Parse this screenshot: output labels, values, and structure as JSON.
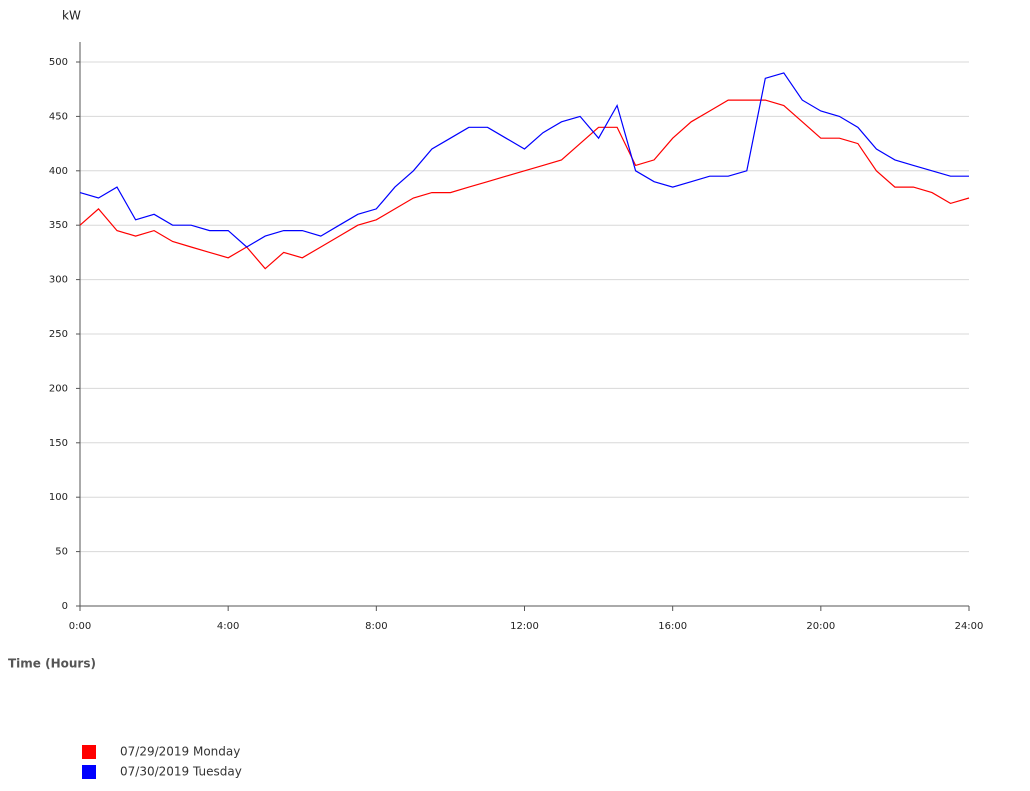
{
  "chart_data": {
    "type": "line",
    "y_label": "kW",
    "x_label": "Time (Hours)",
    "x": [
      0,
      0.5,
      1,
      1.5,
      2,
      2.5,
      3,
      3.5,
      4,
      4.5,
      5,
      5.5,
      6,
      6.5,
      7,
      7.5,
      8,
      8.5,
      9,
      9.5,
      10,
      10.5,
      11,
      11.5,
      12,
      12.5,
      13,
      13.5,
      14,
      14.5,
      15,
      15.5,
      16,
      16.5,
      17,
      17.5,
      18,
      18.5,
      19,
      19.5,
      20,
      20.5,
      21,
      21.5,
      22,
      22.5,
      23,
      23.5,
      24
    ],
    "series": [
      {
        "name": "07/29/2019 Monday",
        "color": "#ff0000",
        "values": [
          350,
          365,
          345,
          340,
          345,
          335,
          330,
          325,
          320,
          330,
          310,
          325,
          320,
          330,
          340,
          350,
          355,
          365,
          375,
          380,
          380,
          385,
          390,
          395,
          400,
          405,
          410,
          425,
          440,
          440,
          405,
          410,
          430,
          445,
          455,
          465,
          465,
          465,
          460,
          445,
          430,
          430,
          425,
          400,
          385,
          385,
          380,
          370,
          375
        ]
      },
      {
        "name": "07/30/2019 Tuesday",
        "color": "#0000ff",
        "values": [
          380,
          375,
          385,
          355,
          360,
          350,
          350,
          345,
          345,
          330,
          340,
          345,
          345,
          340,
          350,
          360,
          365,
          385,
          400,
          420,
          430,
          440,
          440,
          430,
          420,
          435,
          445,
          450,
          430,
          460,
          400,
          390,
          385,
          390,
          395,
          395,
          400,
          485,
          490,
          465,
          455,
          450,
          440,
          420,
          410,
          405,
          400,
          395,
          395
        ]
      }
    ],
    "xlim": [
      0,
      24
    ],
    "xticks": [
      {
        "value": 0,
        "label": "0:00"
      },
      {
        "value": 4,
        "label": "4:00"
      },
      {
        "value": 8,
        "label": "8:00"
      },
      {
        "value": 12,
        "label": "12:00"
      },
      {
        "value": 16,
        "label": "16:00"
      },
      {
        "value": 20,
        "label": "20:00"
      },
      {
        "value": 24,
        "label": "24:00"
      }
    ],
    "ylim": [
      0,
      500
    ],
    "yticks": [
      0,
      50,
      100,
      150,
      200,
      250,
      300,
      350,
      400,
      450,
      500
    ],
    "grid": true
  }
}
